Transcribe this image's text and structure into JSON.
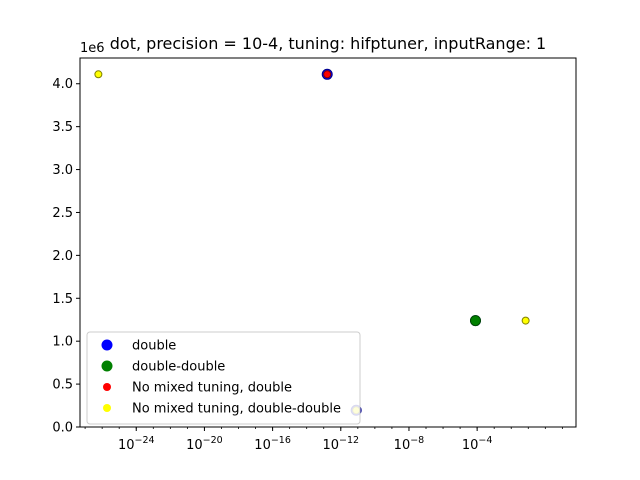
{
  "chart_data": {
    "type": "scatter",
    "title": "dot, precision = 10-4, tuning: hifptuner, inputRange: 1",
    "xlabel": "",
    "ylabel": "",
    "x_scale": "log",
    "xlim_exp": [
      -27.3,
      1.8
    ],
    "xlim": [
      5e-28,
      63
    ],
    "x_ticks": [
      {
        "exp": -24,
        "label": "10^-24"
      },
      {
        "exp": -20,
        "label": "10^-20"
      },
      {
        "exp": -16,
        "label": "10^-16"
      },
      {
        "exp": -12,
        "label": "10^-12"
      },
      {
        "exp": -8,
        "label": "10^-8"
      },
      {
        "exp": -4,
        "label": "10^-4"
      }
    ],
    "ylim": [
      0,
      4300000
    ],
    "y_ticks": [
      {
        "value": 0,
        "label": "0.0"
      },
      {
        "value": 500000,
        "label": "0.5"
      },
      {
        "value": 1000000,
        "label": "1.0"
      },
      {
        "value": 1500000,
        "label": "1.5"
      },
      {
        "value": 2000000,
        "label": "2.0"
      },
      {
        "value": 2500000,
        "label": "2.5"
      },
      {
        "value": 3000000,
        "label": "3.0"
      },
      {
        "value": 3500000,
        "label": "3.5"
      },
      {
        "value": 4000000,
        "label": "4.0"
      }
    ],
    "y_offset_label": "1e6",
    "grid": false,
    "legend_placement": "bottom-left",
    "series": [
      {
        "name": "double",
        "color": "#0000ff",
        "edge": "#00008b",
        "size": 10,
        "points": [
          {
            "x": 1.6e-13,
            "y": 4110000
          },
          {
            "x": 8e-12,
            "y": 195000
          },
          {
            "x": 8e-05,
            "y": 1240000
          }
        ]
      },
      {
        "name": "double-double",
        "color": "#008000",
        "edge": "#004d00",
        "size": 10,
        "points": [
          {
            "x": 8e-05,
            "y": 1240000
          }
        ]
      },
      {
        "name": "No mixed tuning, double",
        "color": "#ff0000",
        "edge": "#8b0000",
        "size": 7,
        "points": [
          {
            "x": 1.6e-13,
            "y": 4110000
          }
        ]
      },
      {
        "name": "No mixed tuning, double-double",
        "color": "#ffff00",
        "edge": "#808000",
        "size": 7,
        "points": [
          {
            "x": 6e-27,
            "y": 4110000
          },
          {
            "x": 8e-12,
            "y": 195000
          },
          {
            "x": 0.07,
            "y": 1240000
          }
        ]
      }
    ]
  }
}
